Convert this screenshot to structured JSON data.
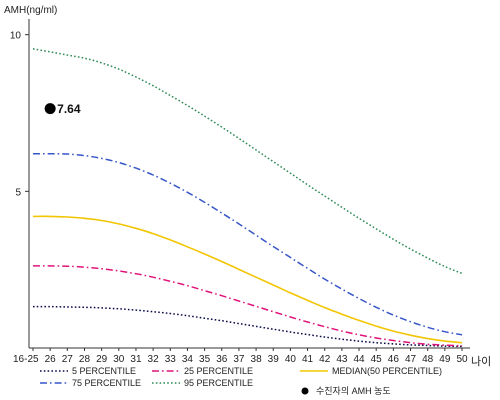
{
  "chart_data": {
    "type": "line",
    "ylabel": "AMH(ng/ml)",
    "xlabel": "나이",
    "x": [
      "16-25",
      "26",
      "27",
      "28",
      "29",
      "30",
      "31",
      "32",
      "33",
      "34",
      "35",
      "36",
      "37",
      "38",
      "39",
      "40",
      "41",
      "42",
      "43",
      "44",
      "45",
      "46",
      "47",
      "48",
      "49",
      "50"
    ],
    "ylim": [
      0,
      10.5
    ],
    "yticks": [
      5,
      10
    ],
    "grid": false,
    "legend_position": "bottom",
    "series": [
      {
        "name": "5 PERCENTILE",
        "color": "#0b0b4a",
        "dash": "dotted",
        "values": [
          1.32,
          1.32,
          1.31,
          1.3,
          1.28,
          1.25,
          1.21,
          1.16,
          1.1,
          1.03,
          0.95,
          0.87,
          0.78,
          0.69,
          0.6,
          0.51,
          0.43,
          0.35,
          0.28,
          0.22,
          0.17,
          0.13,
          0.1,
          0.08,
          0.06,
          0.05
        ]
      },
      {
        "name": "25 PERCENTILE",
        "color": "#e0137a",
        "dash": "dashdot",
        "values": [
          2.62,
          2.62,
          2.61,
          2.58,
          2.53,
          2.46,
          2.37,
          2.26,
          2.13,
          1.99,
          1.83,
          1.67,
          1.5,
          1.33,
          1.16,
          0.99,
          0.83,
          0.68,
          0.54,
          0.42,
          0.32,
          0.24,
          0.17,
          0.12,
          0.09,
          0.07
        ]
      },
      {
        "name": "MEDIAN(50 PERCENTILE)",
        "color": "#f2c500",
        "dash": "solid",
        "values": [
          4.2,
          4.2,
          4.18,
          4.14,
          4.07,
          3.96,
          3.82,
          3.65,
          3.45,
          3.23,
          3.0,
          2.76,
          2.51,
          2.26,
          2.01,
          1.76,
          1.52,
          1.29,
          1.08,
          0.88,
          0.7,
          0.54,
          0.41,
          0.3,
          0.22,
          0.17
        ]
      },
      {
        "name": "75 PERCENTILE",
        "color": "#3756c7",
        "dash": "dashdot",
        "values": [
          6.2,
          6.2,
          6.19,
          6.14,
          6.05,
          5.92,
          5.74,
          5.52,
          5.26,
          4.97,
          4.65,
          4.31,
          3.96,
          3.6,
          3.24,
          2.89,
          2.54,
          2.2,
          1.88,
          1.58,
          1.3,
          1.05,
          0.84,
          0.66,
          0.52,
          0.42
        ]
      },
      {
        "name": "95 PERCENTILE",
        "color": "#2e8b57",
        "dash": "dotted",
        "values": [
          9.55,
          9.45,
          9.35,
          9.25,
          9.1,
          8.9,
          8.65,
          8.37,
          8.06,
          7.74,
          7.4,
          7.05,
          6.69,
          6.32,
          5.95,
          5.58,
          5.21,
          4.85,
          4.49,
          4.14,
          3.8,
          3.47,
          3.16,
          2.87,
          2.6,
          2.38
        ]
      }
    ],
    "points": [
      {
        "name": "수진자의 AMH 농도",
        "x": "26",
        "y": 7.64,
        "label": "7.64",
        "color": "#000000"
      }
    ]
  }
}
